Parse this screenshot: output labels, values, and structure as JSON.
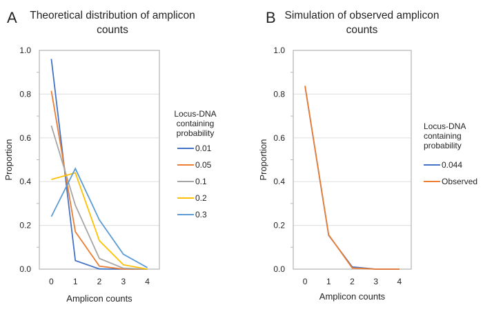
{
  "chart_data": [
    {
      "id": "A",
      "panel_label": "A",
      "type": "line",
      "title": "Theoretical distribution of amplicon counts",
      "title_lines": [
        "Theoretical distribution of amplicon",
        "counts"
      ],
      "xlabel": "Amplicon counts",
      "ylabel": "Proportion",
      "x": [
        0,
        1,
        2,
        3,
        4
      ],
      "x_tick_labels": [
        "0",
        "1",
        "2",
        "3",
        "4"
      ],
      "ylim": [
        0,
        1.0
      ],
      "y_ticks": [
        0.0,
        0.2,
        0.4,
        0.6,
        0.8,
        1.0
      ],
      "y_tick_labels": [
        "0.0",
        "0.2",
        "0.4",
        "0.6",
        "0.8",
        "1.0"
      ],
      "y_minor_ticks": [
        0.1,
        0.3,
        0.5,
        0.7,
        0.9
      ],
      "grid": true,
      "legend_title_lines": [
        "Locus-DNA",
        "containing",
        "probability"
      ],
      "legend_position": "right",
      "series": [
        {
          "name": "0.01",
          "color": "#4472C4",
          "values": [
            0.961,
            0.039,
            0.001,
            0.0,
            0.0
          ]
        },
        {
          "name": "0.05",
          "color": "#ED7D31",
          "values": [
            0.815,
            0.171,
            0.014,
            0.0,
            0.0
          ]
        },
        {
          "name": "0.1",
          "color": "#A5A5A5",
          "values": [
            0.656,
            0.292,
            0.049,
            0.004,
            0.0
          ]
        },
        {
          "name": "0.2",
          "color": "#FFC000",
          "values": [
            0.41,
            0.44,
            0.13,
            0.02,
            0.0
          ]
        },
        {
          "name": "0.3",
          "color": "#5B9BD5",
          "values": [
            0.24,
            0.46,
            0.225,
            0.068,
            0.007
          ]
        }
      ]
    },
    {
      "id": "B",
      "panel_label": "B",
      "type": "line",
      "title": "Simulation of observed amplicon counts",
      "title_lines": [
        "Simulation of observed amplicon",
        "counts"
      ],
      "xlabel": "Amplicon counts",
      "ylabel": "Proportion",
      "x": [
        0,
        1,
        2,
        3,
        4
      ],
      "x_tick_labels": [
        "0",
        "1",
        "2",
        "3",
        "4"
      ],
      "ylim": [
        0,
        1.0
      ],
      "y_ticks": [
        0.0,
        0.2,
        0.4,
        0.6,
        0.8,
        1.0
      ],
      "y_tick_labels": [
        "0.0",
        "0.2",
        "0.4",
        "0.6",
        "0.8",
        "1.0"
      ],
      "y_minor_ticks": [
        0.1,
        0.3,
        0.5,
        0.7,
        0.9
      ],
      "grid": true,
      "legend_title_lines": [
        "Locus-DNA",
        "containing",
        "probability"
      ],
      "legend_position": "right",
      "series": [
        {
          "name": "0.044",
          "color": "#4472C4",
          "values": [
            0.836,
            0.155,
            0.01,
            0.0,
            0.0
          ]
        },
        {
          "name": "Observed",
          "color": "#ED7D31",
          "values": [
            0.838,
            0.157,
            0.005,
            0.0,
            0.0
          ]
        }
      ]
    }
  ]
}
